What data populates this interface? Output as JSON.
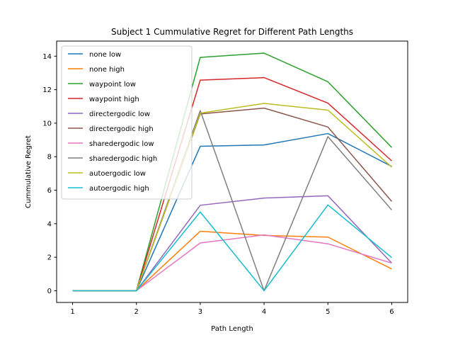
{
  "chart_data": {
    "type": "line",
    "title": "Subject 1 Cummulative Regret for Different Path Lengths",
    "xlabel": "Path Length",
    "ylabel": "Cummulative Regret",
    "x": [
      1,
      2,
      3,
      4,
      5,
      6
    ],
    "xticks": [
      "1",
      "2",
      "3",
      "4",
      "5",
      "6"
    ],
    "yticks": [
      "0",
      "2",
      "4",
      "6",
      "8",
      "10",
      "12",
      "14"
    ],
    "xlim": [
      0.75,
      6.25
    ],
    "ylim": [
      -0.7,
      14.9
    ],
    "grid": false,
    "legend_position": "top-left",
    "series": [
      {
        "name": "none low",
        "color": "#1f77b4",
        "values": [
          0,
          0,
          8.62,
          8.7,
          9.38,
          7.42
        ]
      },
      {
        "name": "none high",
        "color": "#ff7f0e",
        "values": [
          0,
          0,
          3.55,
          3.3,
          3.2,
          1.3
        ]
      },
      {
        "name": "waypoint low",
        "color": "#2ca02c",
        "values": [
          0,
          0,
          13.93,
          14.18,
          12.47,
          8.55
        ]
      },
      {
        "name": "waypoint high",
        "color": "#d62728",
        "values": [
          0,
          0,
          12.57,
          12.72,
          11.2,
          7.75
        ]
      },
      {
        "name": "directergodic low",
        "color": "#9467bd",
        "values": [
          0,
          0,
          5.1,
          5.53,
          5.67,
          1.65
        ]
      },
      {
        "name": "directergodic high",
        "color": "#8c564b",
        "values": [
          0,
          0,
          10.55,
          10.9,
          9.77,
          5.33
        ]
      },
      {
        "name": "sharedergodic low",
        "color": "#e377c2",
        "values": [
          0,
          0,
          2.85,
          3.33,
          2.8,
          1.65
        ]
      },
      {
        "name": "sharedergodic high",
        "color": "#7f7f7f",
        "values": [
          0,
          0,
          10.75,
          0,
          9.2,
          4.82
        ]
      },
      {
        "name": "autoergodic low",
        "color": "#bcbd22",
        "values": [
          0,
          0,
          10.6,
          11.18,
          10.78,
          7.38
        ]
      },
      {
        "name": "autoergodic high",
        "color": "#17becf",
        "values": [
          0,
          0,
          4.7,
          0,
          5.12,
          1.98
        ]
      }
    ]
  }
}
